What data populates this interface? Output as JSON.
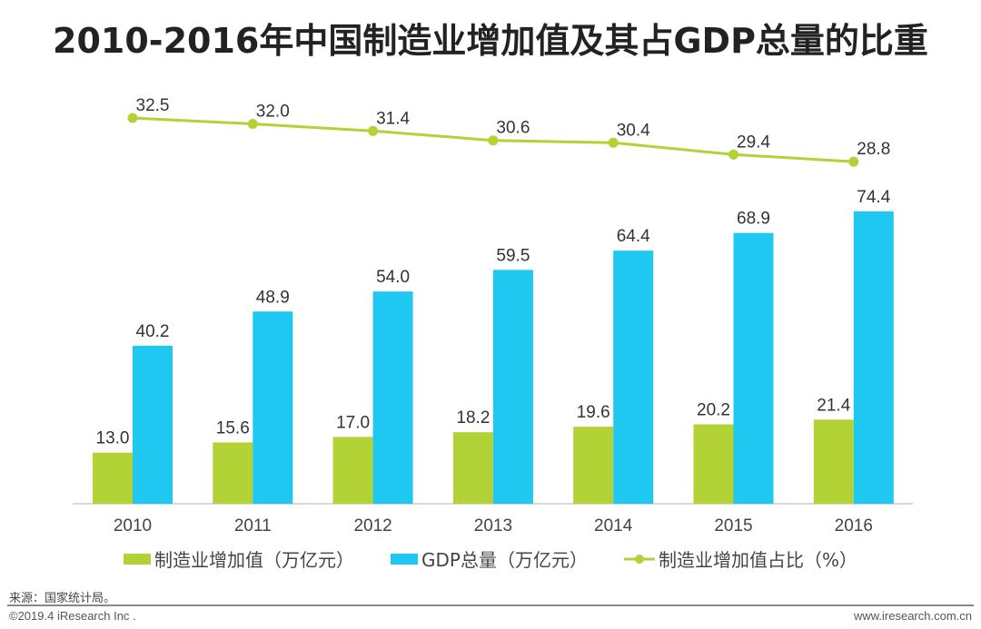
{
  "chart_data": {
    "type": "bar+line",
    "title": "2010-2016年中国制造业增加值及其占GDP总量的比重",
    "categories": [
      "2010",
      "2011",
      "2012",
      "2013",
      "2014",
      "2015",
      "2016"
    ],
    "series": [
      {
        "name": "制造业增加值（万亿元）",
        "type": "bar",
        "color": "#b2d235",
        "values": [
          13.0,
          15.6,
          17.0,
          18.2,
          19.6,
          20.2,
          21.4
        ]
      },
      {
        "name": "GDP总量（万亿元）",
        "type": "bar",
        "color": "#1ec8f0",
        "values": [
          40.2,
          48.9,
          54.0,
          59.5,
          64.4,
          68.9,
          74.4
        ]
      },
      {
        "name": "制造业增加值占比（%）",
        "type": "line",
        "color": "#b2d235",
        "values": [
          32.5,
          32.0,
          31.4,
          30.6,
          30.4,
          29.4,
          28.8
        ]
      }
    ],
    "legend_position": "bottom",
    "grid": false
  },
  "footer": {
    "source": "来源：国家统计局。",
    "copyright": "©2019.4 iResearch Inc .",
    "website": "www.iresearch.com.cn"
  }
}
